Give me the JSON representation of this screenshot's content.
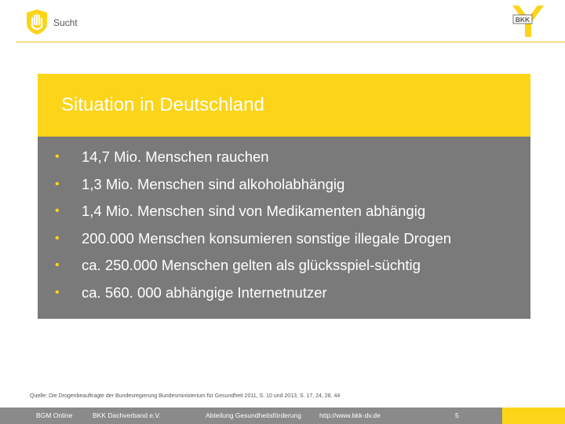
{
  "header": {
    "title": "Sucht",
    "logo_text": "BKK",
    "icons": {
      "left": "hand-stop-icon",
      "right": "bkk-logo"
    },
    "accent_color": "#fcd418"
  },
  "slide": {
    "title": "Situation in Deutschland",
    "bullets": [
      "14,7 Mio. Menschen rauchen",
      "1,3 Mio. Menschen sind alkoholabhängig",
      "1,4 Mio. Menschen sind von Medikamenten abhängig",
      "200.000 Menschen konsumieren sonstige illegale Drogen",
      "ca. 250.000 Menschen gelten als glücksspiel-süchtig",
      "ca. 560. 000 abhängige Internetnutzer"
    ],
    "bullet_glyph": "•",
    "source": "Quelle: Die Drogenbeauftragte der Bundesregierung Bundesministerium für Gesundheit 2011, S. 10 und 2013, S. 17, 24, 28, 44"
  },
  "footer": {
    "items": [
      "BGM Online",
      "BKK Dachverband e.V.",
      "Abteilung Gesundheitsförderung",
      "http://www.bkk-dv.de"
    ],
    "page_number": "5"
  }
}
